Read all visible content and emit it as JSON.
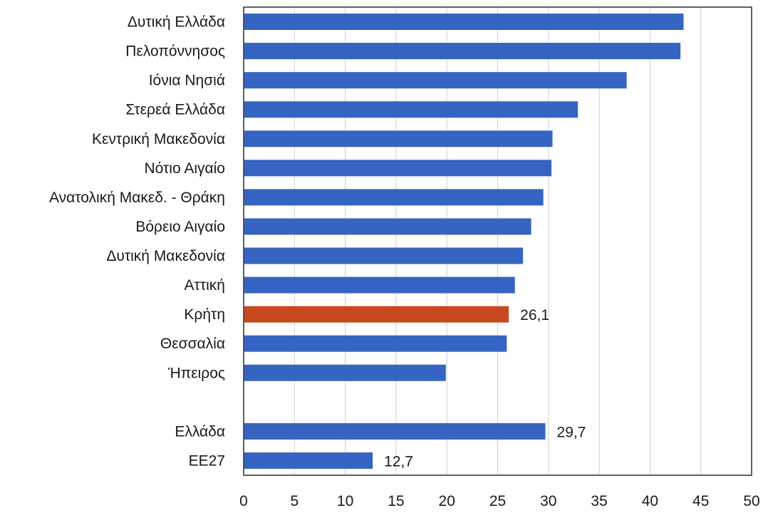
{
  "chart_data": {
    "type": "bar",
    "orientation": "horizontal",
    "categories": [
      "Δυτική Ελλάδα",
      "Πελοπόννησος",
      "Ιόνια Νησιά",
      "Στερεά Ελλάδα",
      "Κεντρική Μακεδονία",
      "Νότιο Αιγαίο",
      "Ανατολική Μακεδ. - Θράκη",
      "Βόρειο Αιγαίο",
      "Δυτική Μακεδονία",
      "Αττική",
      "Κρήτη",
      "Θεσσαλία",
      "Ήπειρος",
      "",
      "Ελλάδα",
      "ΕΕ27"
    ],
    "values": [
      43.3,
      43.0,
      37.7,
      32.9,
      30.4,
      30.3,
      29.5,
      28.3,
      27.5,
      26.7,
      26.1,
      25.9,
      19.9,
      null,
      29.7,
      12.7
    ],
    "data_labels": [
      "",
      "",
      "",
      "",
      "",
      "",
      "",
      "",
      "",
      "",
      "26,1",
      "",
      "",
      "",
      "29,7",
      "12,7"
    ],
    "highlight_category": "Κρήτη",
    "colors": {
      "default": "#3564C2",
      "highlight": "#C8491F"
    },
    "xlim": [
      0,
      50
    ],
    "xticks": [
      0,
      5,
      10,
      15,
      20,
      25,
      30,
      35,
      40,
      45,
      50
    ],
    "tick_labels": [
      "0",
      "5",
      "10",
      "15",
      "20",
      "25",
      "30",
      "35",
      "40",
      "45",
      "50"
    ],
    "grid": "vertical",
    "legend": "none",
    "title": "",
    "xlabel": "",
    "ylabel": ""
  }
}
